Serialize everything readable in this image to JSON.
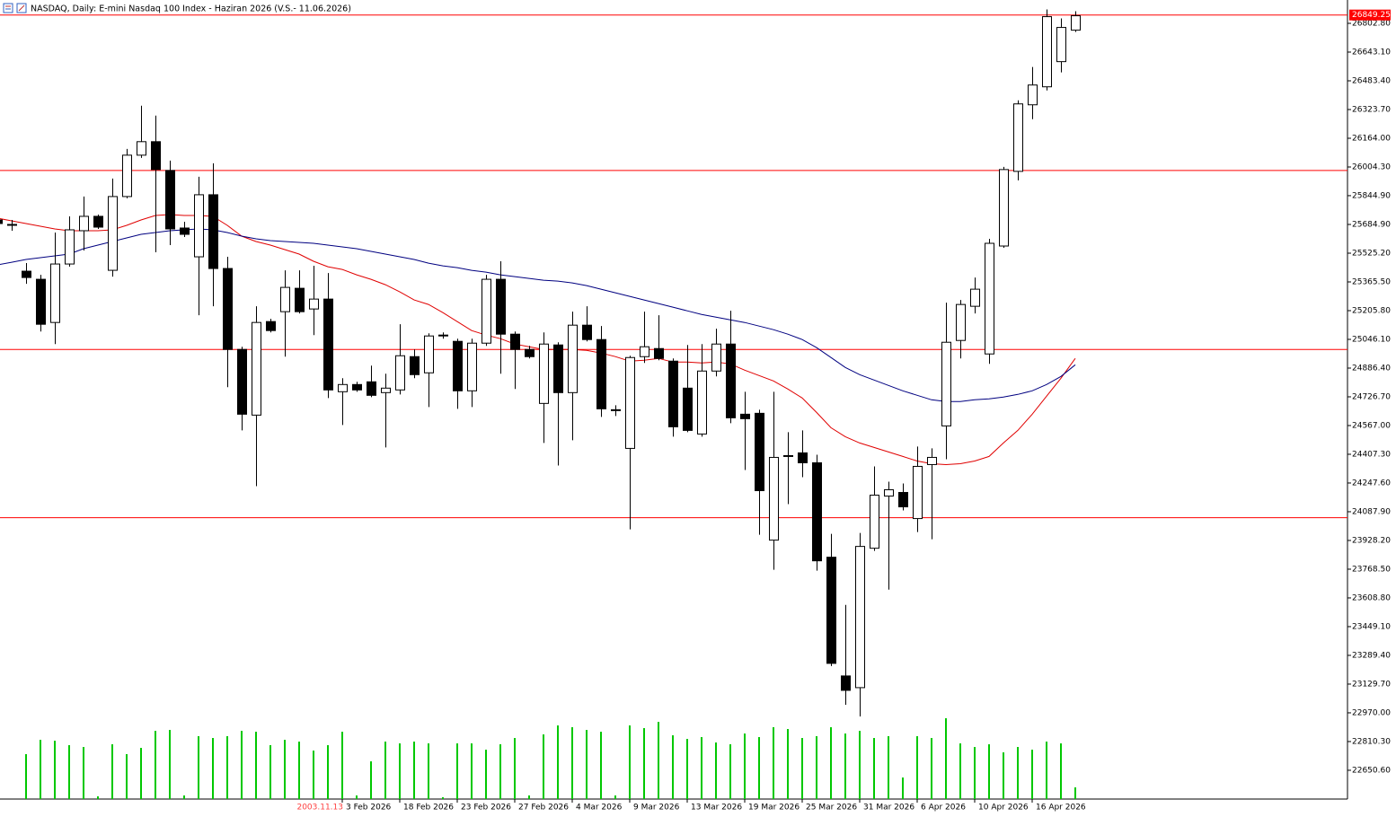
{
  "chart_data": {
    "type": "candlestick",
    "title": "NASDAQ, Daily:  E-mini Nasdaq 100 Index -  Haziran 2026 (V.S.- 11.06.2026)",
    "categories": [
      null,
      null,
      null,
      null,
      null,
      null,
      null,
      null,
      null,
      null,
      null,
      null,
      null,
      null,
      null,
      null,
      null,
      null,
      null,
      null,
      null,
      null,
      null,
      null,
      "3 Feb 2026",
      null,
      null,
      null,
      "18 Feb 2026",
      null,
      null,
      null,
      "23 Feb 2026",
      null,
      null,
      null,
      "27 Feb 2026",
      null,
      null,
      null,
      "4 Mar 2026",
      null,
      null,
      null,
      "9 Mar 2026",
      null,
      null,
      null,
      "13 Mar 2026",
      null,
      null,
      null,
      "19 Mar 2026",
      null,
      null,
      null,
      "25 Mar 2026",
      null,
      null,
      null,
      "31 Mar 2026",
      null,
      null,
      null,
      "6 Apr 2026",
      null,
      null,
      null,
      "10 Apr 2026",
      null,
      null,
      null,
      "16 Apr 2026",
      null,
      null,
      null
    ],
    "cursor_label": "2003.11.13",
    "open": [
      25710,
      25685,
      25425,
      25380,
      25140,
      25465,
      25650,
      25730,
      25430,
      25840,
      26070,
      26145,
      25985,
      25665,
      25505,
      25850,
      25440,
      24990,
      24625,
      25145,
      25200,
      25330,
      25215,
      25270,
      24755,
      24795,
      24810,
      24750,
      24765,
      24950,
      24860,
      25070,
      25035,
      24760,
      25025,
      25380,
      25075,
      24990,
      24690,
      25015,
      24750,
      25125,
      25045,
      24655,
      24440,
      24950,
      24995,
      24925,
      24775,
      24520,
      24870,
      25020,
      24630,
      24635,
      23930,
      24400,
      24415,
      24360,
      23835,
      23175,
      23110,
      23885,
      24175,
      24195,
      24050,
      24350,
      24565,
      25040,
      25230,
      24965,
      25565,
      25980,
      26350,
      26450,
      26590,
      26765
    ],
    "high": [
      25730,
      25710,
      25470,
      25405,
      25640,
      25730,
      25840,
      25740,
      25940,
      26105,
      26345,
      26290,
      26040,
      25700,
      25950,
      26025,
      25505,
      25005,
      25230,
      25160,
      25430,
      25430,
      25455,
      25415,
      24830,
      24810,
      24900,
      24855,
      25130,
      24990,
      25080,
      25085,
      25050,
      25050,
      25405,
      25480,
      25090,
      25010,
      25085,
      25030,
      25200,
      25230,
      25120,
      24680,
      24955,
      25200,
      25180,
      24940,
      25015,
      25020,
      25105,
      25205,
      24755,
      24655,
      24755,
      24530,
      24540,
      24405,
      23965,
      23570,
      23970,
      24340,
      24255,
      24245,
      24450,
      24440,
      25250,
      25265,
      25390,
      25605,
      26005,
      26375,
      26560,
      26880,
      26830,
      26870
    ],
    "low": [
      25680,
      25650,
      25355,
      25090,
      25020,
      25450,
      25540,
      25660,
      25395,
      25830,
      26055,
      25530,
      25570,
      25615,
      25180,
      25230,
      24780,
      24540,
      24230,
      25085,
      24950,
      25190,
      25070,
      24720,
      24570,
      24755,
      24725,
      24445,
      24740,
      24830,
      24670,
      25050,
      24660,
      24670,
      25010,
      24855,
      24770,
      24940,
      24470,
      24345,
      24485,
      25035,
      24615,
      24620,
      23990,
      24915,
      24930,
      24505,
      24530,
      24505,
      24840,
      24580,
      24320,
      23960,
      23765,
      24130,
      24280,
      23760,
      23230,
      23015,
      22950,
      23870,
      23655,
      24095,
      23975,
      23935,
      24380,
      24940,
      25190,
      24910,
      25555,
      25930,
      26270,
      26430,
      26530,
      26755
    ],
    "close": [
      25690,
      25680,
      25390,
      25130,
      25465,
      25655,
      25730,
      25670,
      25840,
      26070,
      26145,
      25990,
      25660,
      25630,
      25850,
      25440,
      24990,
      24630,
      25140,
      25095,
      25335,
      25200,
      25270,
      24765,
      24795,
      24765,
      24735,
      24775,
      24955,
      24850,
      25065,
      25070,
      24760,
      25025,
      25380,
      25075,
      24990,
      24950,
      25020,
      24750,
      25125,
      25045,
      24660,
      24655,
      24945,
      25005,
      24940,
      24560,
      24540,
      24870,
      25020,
      24610,
      24605,
      24205,
      24390,
      24400,
      24360,
      23815,
      23245,
      23095,
      23895,
      24180,
      24210,
      24115,
      24340,
      24390,
      25030,
      25240,
      25325,
      25580,
      25990,
      26355,
      26460,
      26840,
      26780,
      26845
    ],
    "ma_series": [
      {
        "color": "#e00000",
        "values": [
          25720,
          25705,
          25690,
          25675,
          25660,
          25650,
          25650,
          25650,
          25655,
          25680,
          25710,
          25735,
          25740,
          25735,
          25735,
          25730,
          25680,
          25620,
          25590,
          25570,
          25545,
          25520,
          25480,
          25450,
          25435,
          25405,
          25380,
          25350,
          25310,
          25265,
          25240,
          25195,
          25145,
          25095,
          25070,
          25050,
          25020,
          25005,
          24990,
          24990,
          24990,
          24985,
          24970,
          24950,
          24925,
          24930,
          24940,
          24920,
          24920,
          24915,
          24920,
          24910,
          24875,
          24845,
          24815,
          24770,
          24720,
          24640,
          24555,
          24505,
          24470,
          24445,
          24420,
          24395,
          24370,
          24355,
          24350,
          24355,
          24370,
          24395,
          24470,
          24540,
          24630,
          24730,
          24830,
          24940
        ]
      },
      {
        "color": "#000080",
        "values": [
          25460,
          25475,
          25490,
          25500,
          25510,
          25520,
          25550,
          25570,
          25590,
          25610,
          25630,
          25640,
          25650,
          25655,
          25660,
          25655,
          25640,
          25620,
          25605,
          25595,
          25590,
          25585,
          25580,
          25570,
          25560,
          25550,
          25535,
          25520,
          25505,
          25490,
          25470,
          25455,
          25445,
          25430,
          25420,
          25405,
          25395,
          25385,
          25375,
          25370,
          25360,
          25345,
          25325,
          25305,
          25285,
          25265,
          25245,
          25225,
          25205,
          25185,
          25170,
          25155,
          25140,
          25120,
          25100,
          25075,
          25045,
          25000,
          24945,
          24890,
          24850,
          24820,
          24790,
          24760,
          24735,
          24710,
          24700,
          24700,
          24710,
          24715,
          24725,
          24740,
          24760,
          24795,
          24840,
          24905
        ]
      }
    ],
    "volume": {
      "color": "#00c800",
      "values": [
        null,
        null,
        50,
        66,
        65,
        60,
        58,
        3,
        61,
        50,
        57,
        76,
        77,
        4,
        70,
        68,
        70,
        76,
        75,
        60,
        66,
        64,
        54,
        60,
        75,
        4,
        42,
        64,
        62,
        64,
        62,
        2,
        62,
        62,
        55,
        61,
        68,
        4,
        72,
        82,
        80,
        77,
        75,
        4,
        82,
        79,
        86,
        71,
        67,
        69,
        63,
        61,
        73,
        69,
        80,
        78,
        68,
        70,
        80,
        73,
        76,
        68,
        70,
        24,
        70,
        68,
        90,
        62,
        58,
        61,
        52,
        58,
        55,
        64,
        62,
        13
      ]
    },
    "hlines": {
      "color": "#ff0000",
      "values": [
        25985,
        24990,
        24055
      ]
    },
    "last_price": 26849.25,
    "ylim": [
      22490.7,
      26932.6
    ],
    "yticks": [
      {
        "value": 26802.8,
        "label": "26802.80"
      },
      {
        "value": 26643.1,
        "label": "26643.10"
      },
      {
        "value": 26483.4,
        "label": "26483.40"
      },
      {
        "value": 26323.7,
        "label": "26323.70"
      },
      {
        "value": 26164,
        "label": "26164.00"
      },
      {
        "value": 26004.3,
        "label": "26004.30"
      },
      {
        "value": 25844.9,
        "label": "25844.90"
      },
      {
        "value": 25684.9,
        "label": "25684.90"
      },
      {
        "value": 25525.2,
        "label": "25525.20"
      },
      {
        "value": 25365.5,
        "label": "25365.50"
      },
      {
        "value": 25205.8,
        "label": "25205.80"
      },
      {
        "value": 25046.1,
        "label": "25046.10"
      },
      {
        "value": 24886.4,
        "label": "24886.40"
      },
      {
        "value": 24726.7,
        "label": "24726.70"
      },
      {
        "value": 24567,
        "label": "24567.00"
      },
      {
        "value": 24407.3,
        "label": "24407.30"
      },
      {
        "value": 24247.6,
        "label": "24247.60"
      },
      {
        "value": 24087.9,
        "label": "24087.90"
      },
      {
        "value": 23928.2,
        "label": "23928.20"
      },
      {
        "value": 23768.5,
        "label": "23768.50"
      },
      {
        "value": 23608.8,
        "label": "23608.80"
      },
      {
        "value": 23449.1,
        "label": "23449.10"
      },
      {
        "value": 23289.4,
        "label": "23289.40"
      },
      {
        "value": 23129.7,
        "label": "23129.70"
      },
      {
        "value": 22970,
        "label": "22970.00"
      },
      {
        "value": 22810.3,
        "label": "22810.30"
      },
      {
        "value": 22650.6,
        "label": "22650.60"
      }
    ]
  }
}
